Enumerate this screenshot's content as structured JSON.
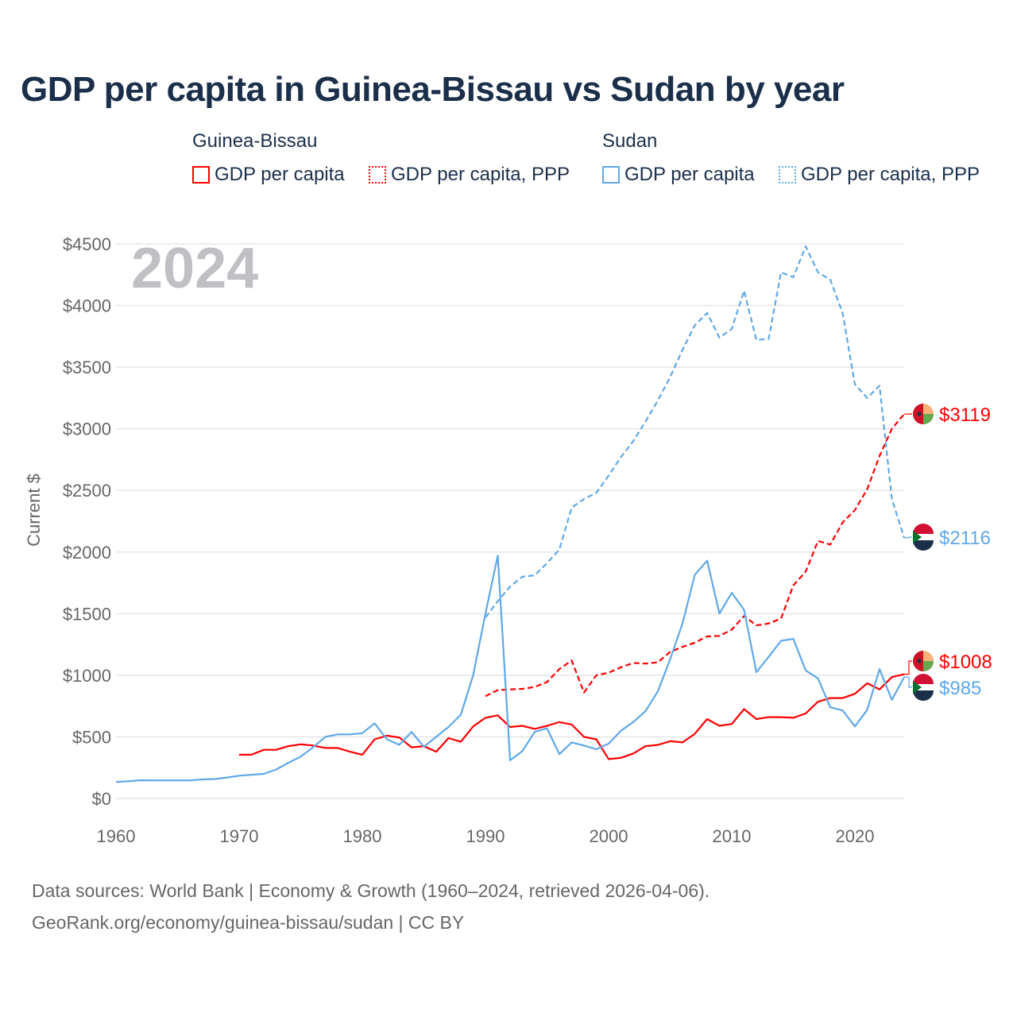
{
  "chart_data": {
    "type": "line",
    "title": "GDP per capita in Guinea-Bissau vs Sudan by year",
    "year_label": "2024",
    "ylabel": "Current $",
    "xlabel": "",
    "ylim": [
      0,
      4500
    ],
    "xlim": [
      1960,
      2024
    ],
    "yticks": [
      0,
      500,
      1000,
      1500,
      2000,
      2500,
      3000,
      3500,
      4000,
      4500
    ],
    "ytick_labels": [
      "$0",
      "$500",
      "$1000",
      "$1500",
      "$2000",
      "$2500",
      "$3000",
      "$3500",
      "$4000",
      "$4500"
    ],
    "xticks": [
      1960,
      1970,
      1980,
      1990,
      2000,
      2010,
      2020
    ],
    "xtick_labels": [
      "1960",
      "1970",
      "1980",
      "1990",
      "2000",
      "2010",
      "2020"
    ],
    "grid": true,
    "legend": {
      "placement": "top",
      "groups": [
        {
          "name": "Guinea-Bissau",
          "items": [
            "GDP per capita",
            "GDP per capita, PPP"
          ]
        },
        {
          "name": "Sudan",
          "items": [
            "GDP per capita",
            "GDP per capita, PPP"
          ]
        }
      ]
    },
    "series": [
      {
        "name": "Guinea-Bissau GDP per capita",
        "country": "Guinea-Bissau",
        "style": "solid",
        "color": "#ff0000",
        "start_year": 1970,
        "end_label": "$1008",
        "values": [
          355,
          355,
          395,
          395,
          425,
          440,
          430,
          410,
          410,
          380,
          355,
          480,
          510,
          495,
          415,
          425,
          380,
          490,
          460,
          585,
          655,
          675,
          580,
          590,
          565,
          590,
          620,
          600,
          500,
          480,
          320,
          330,
          365,
          425,
          435,
          465,
          455,
          525,
          645,
          590,
          605,
          725,
          645,
          660,
          660,
          655,
          690,
          785,
          815,
          815,
          850,
          935,
          885,
          985,
          1008
        ]
      },
      {
        "name": "Guinea-Bissau GDP per capita, PPP",
        "country": "Guinea-Bissau",
        "style": "dashed",
        "color": "#ff0000",
        "start_year": 1990,
        "end_label": "$3119",
        "values": [
          830,
          880,
          885,
          890,
          905,
          945,
          1050,
          1120,
          860,
          1000,
          1020,
          1065,
          1100,
          1095,
          1105,
          1190,
          1230,
          1265,
          1315,
          1320,
          1370,
          1480,
          1405,
          1420,
          1460,
          1730,
          1840,
          2090,
          2060,
          2240,
          2340,
          2510,
          2780,
          3000,
          3119
        ]
      },
      {
        "name": "Sudan GDP per capita",
        "country": "Sudan",
        "style": "solid",
        "color": "#5fa8e8",
        "start_year": 1960,
        "end_label": "$985",
        "values": [
          135,
          140,
          148,
          147,
          147,
          147,
          147,
          155,
          158,
          170,
          185,
          193,
          200,
          235,
          290,
          340,
          415,
          500,
          520,
          520,
          530,
          610,
          480,
          435,
          540,
          420,
          500,
          580,
          680,
          1000,
          1500,
          1970,
          310,
          385,
          540,
          570,
          360,
          455,
          430,
          400,
          445,
          550,
          620,
          710,
          870,
          1130,
          1420,
          1815,
          1930,
          1500,
          1670,
          1530,
          1025,
          1150,
          1280,
          1295,
          1040,
          975,
          740,
          715,
          585,
          720,
          1050,
          800,
          985
        ]
      },
      {
        "name": "Sudan GDP per capita, PPP",
        "country": "Sudan",
        "style": "dashed",
        "color": "#5fa8e8",
        "start_year": 1990,
        "end_label": "$2116",
        "values": [
          1470,
          1600,
          1720,
          1800,
          1810,
          1910,
          2020,
          2360,
          2430,
          2480,
          2620,
          2770,
          2900,
          3060,
          3230,
          3420,
          3640,
          3840,
          3940,
          3740,
          3810,
          4120,
          3720,
          3730,
          4270,
          4230,
          4480,
          4270,
          4210,
          3940,
          3360,
          3250,
          3350,
          2430,
          2116
        ]
      }
    ]
  },
  "footer": {
    "line1": "Data sources: World Bank | Economy & Growth (1960–2024, retrieved 2026-04-06).",
    "line2": "GeoRank.org/economy/guinea-bissau/sudan | CC BY"
  },
  "colors": {
    "guinea_bissau": "#ff0000",
    "sudan": "#5fa8e8",
    "title": "#1b2f4b"
  }
}
